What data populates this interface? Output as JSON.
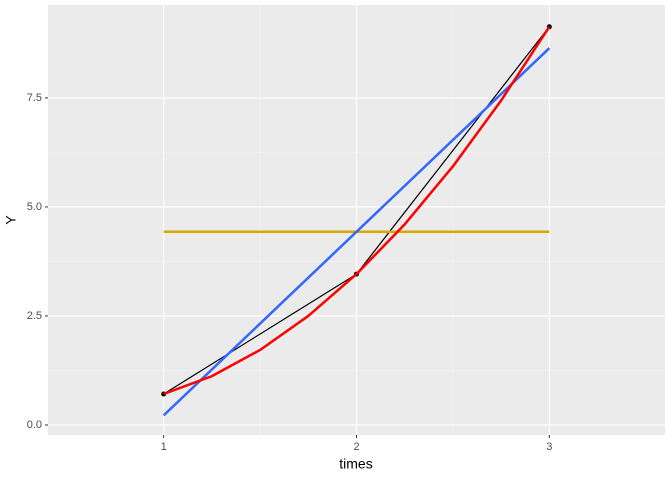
{
  "chart_data": {
    "type": "line",
    "x_label": "times",
    "y_label": "Y",
    "xlim": [
      0.4,
      3.6
    ],
    "ylim": [
      -0.23,
      9.63
    ],
    "xticks": [
      1,
      2,
      3
    ],
    "yticks": [
      {
        "value": 0,
        "label": "0.0"
      },
      2.5,
      {
        "value": 5,
        "label": "5.0"
      },
      7.5
    ],
    "grid": true,
    "minor_grid": true,
    "series": [
      {
        "color": "#000000",
        "x": [
          1,
          2,
          3
        ],
        "values": [
          0.71,
          3.46,
          9.13
        ],
        "points": true,
        "width": 1.2
      },
      {
        "color": "#d4aa00",
        "x": [
          1,
          3
        ],
        "values": [
          4.43,
          4.43
        ],
        "width": 2.5
      },
      {
        "color": "#3366ff",
        "x": [
          1,
          3
        ],
        "values": [
          0.22,
          8.64
        ],
        "width": 2.5
      },
      {
        "color": "#ff0000",
        "x": [
          1,
          1.25,
          1.5,
          1.75,
          2,
          2.25,
          2.5,
          2.75,
          3
        ],
        "values": [
          0.71,
          1.12,
          1.72,
          2.5,
          3.46,
          4.6,
          5.93,
          7.44,
          9.13
        ],
        "width": 2.5
      }
    ]
  }
}
